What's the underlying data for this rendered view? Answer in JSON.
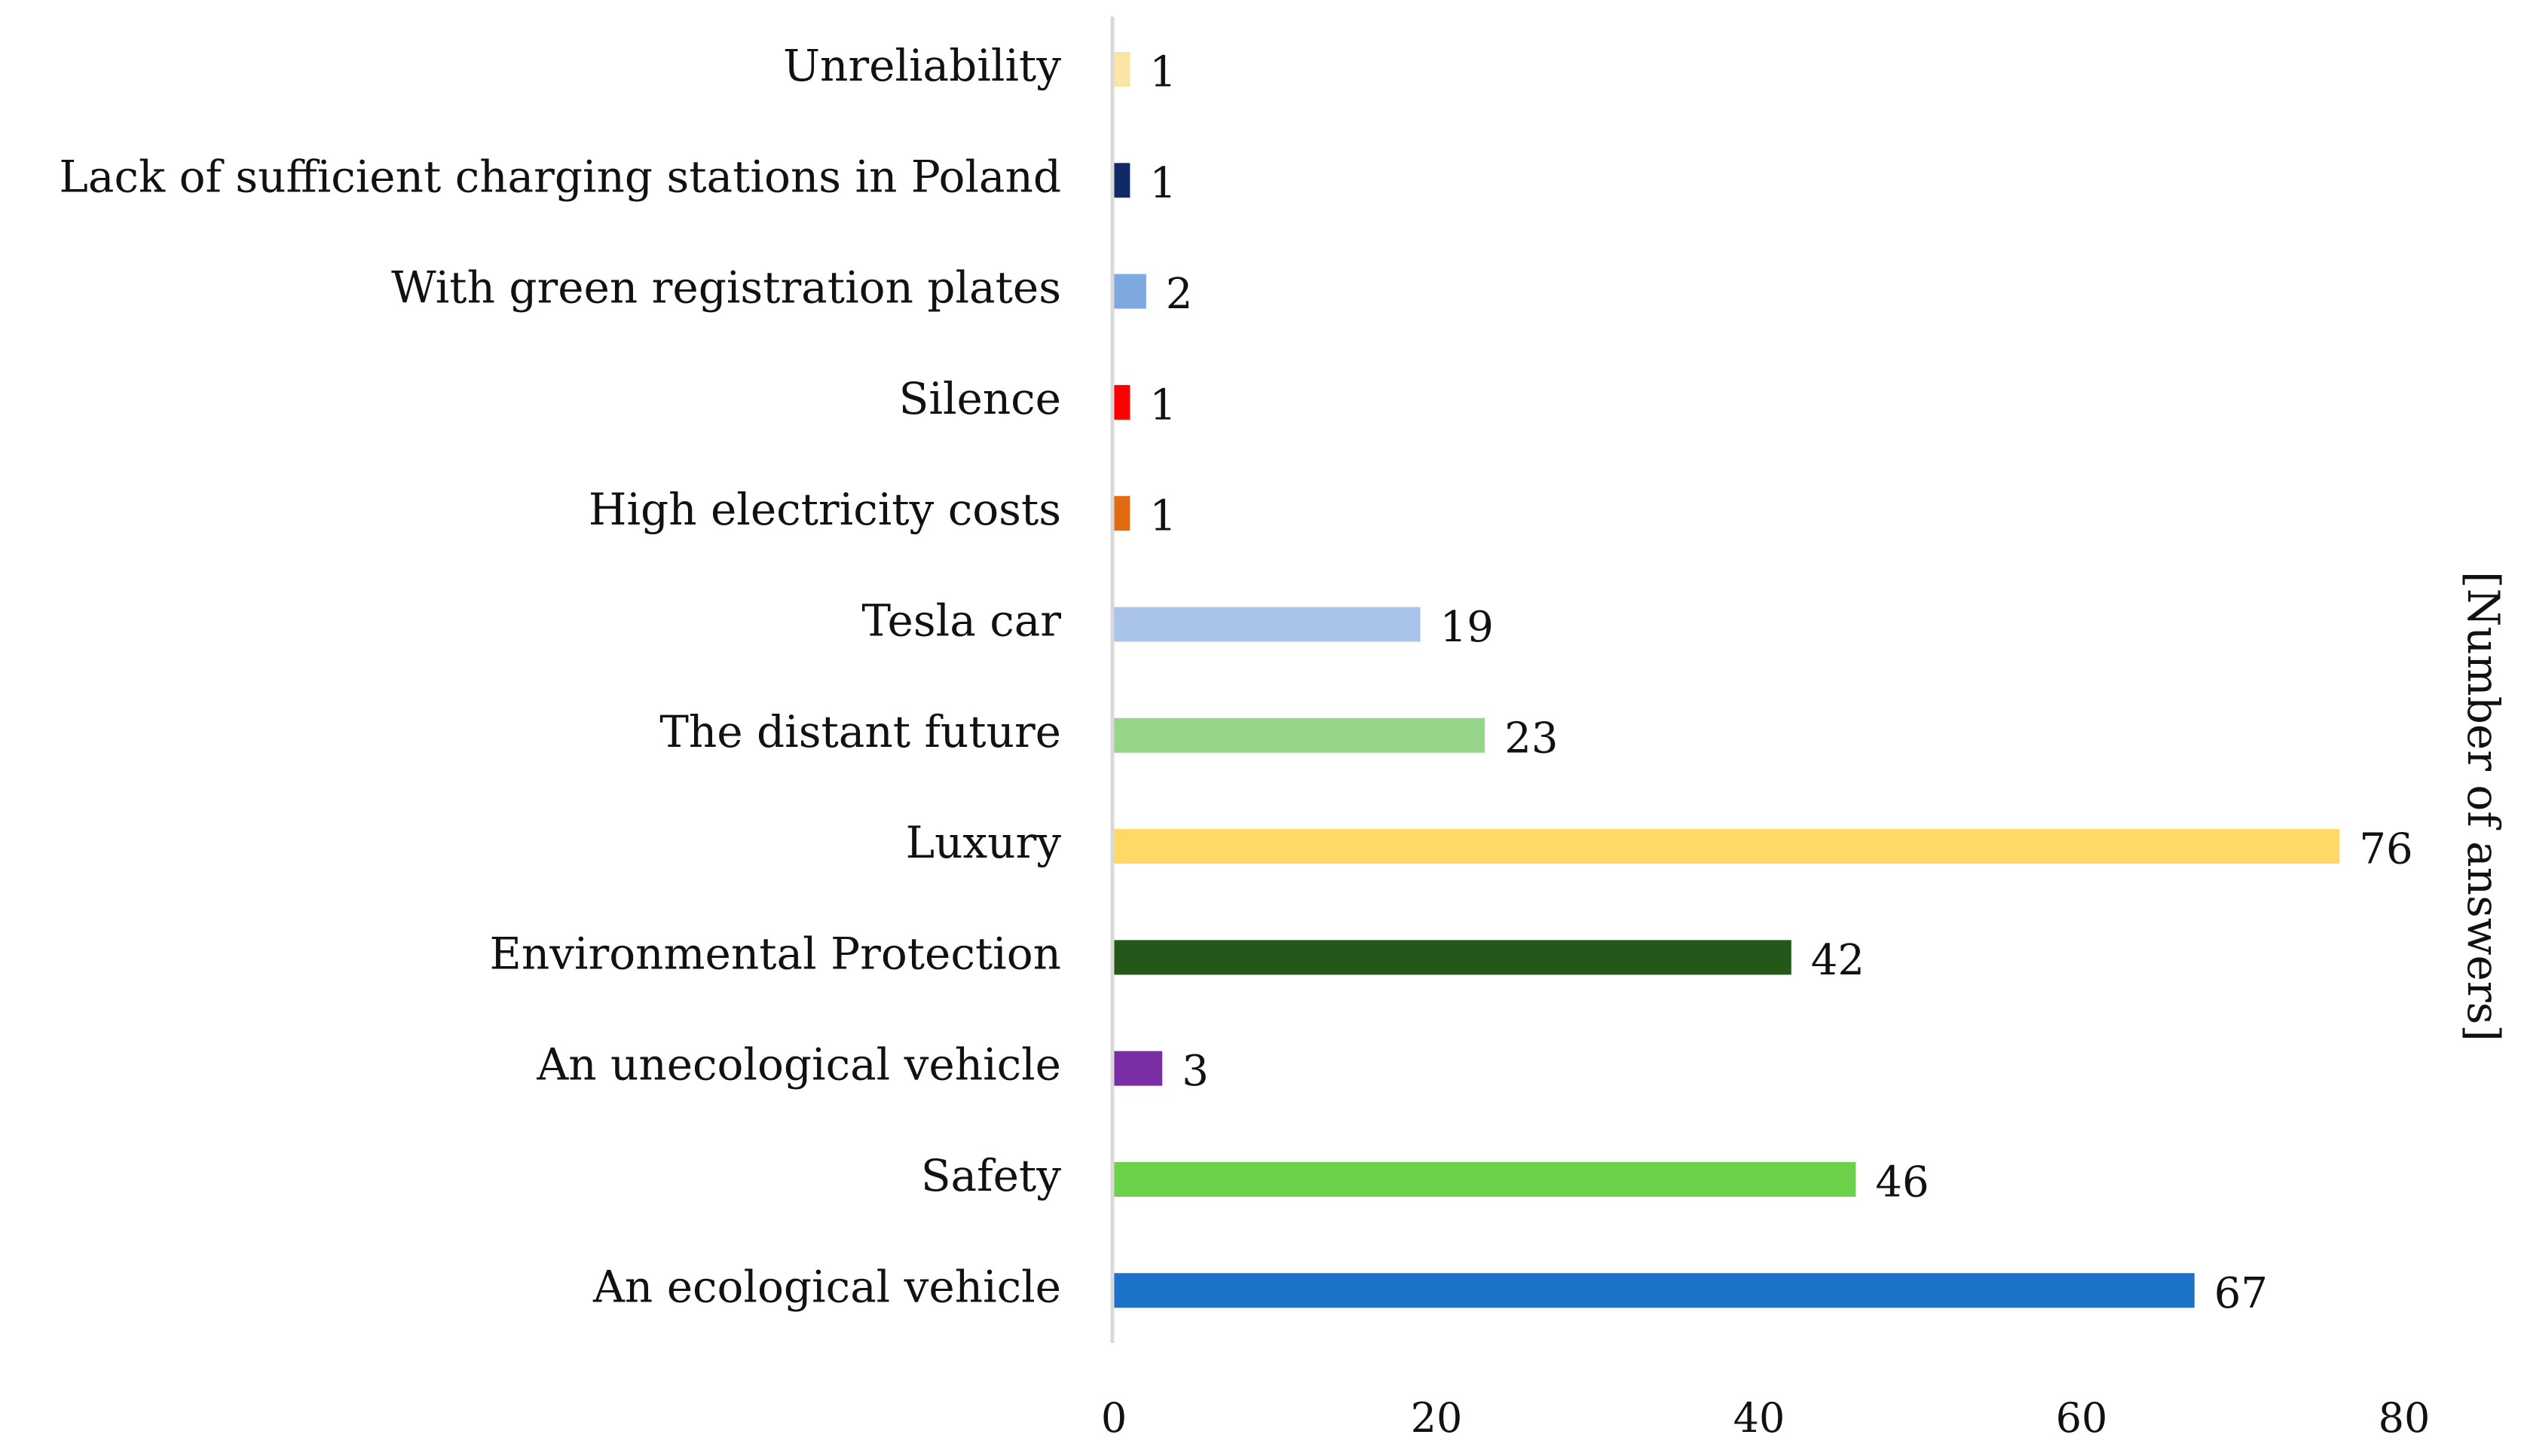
{
  "chart_data": {
    "type": "bar",
    "orientation": "horizontal",
    "title": "",
    "xlabel": "",
    "ylabel": "[Number of answers]",
    "xlim": [
      0,
      80
    ],
    "xticks": [
      0,
      20,
      40,
      60,
      80
    ],
    "grid": false,
    "legend": "none",
    "categories": [
      "Unreliability",
      "Lack of sufficient charging stations in Poland",
      "With green registration plates",
      "Silence",
      "High electricity costs",
      "Tesla car",
      "The distant future",
      "Luxury",
      "Environmental Protection",
      "An unecological vehicle",
      "Safety",
      "An ecological vehicle"
    ],
    "values": [
      1,
      1,
      2,
      1,
      1,
      19,
      23,
      76,
      42,
      3,
      46,
      67
    ],
    "colors": [
      "#FBE5A3",
      "#0F2A66",
      "#7EA9E0",
      "#FF0000",
      "#E26A10",
      "#A9C4E8",
      "#97D68A",
      "#FFD966",
      "#23581A",
      "#7A2EA6",
      "#6CD24A",
      "#1B72C7"
    ]
  }
}
